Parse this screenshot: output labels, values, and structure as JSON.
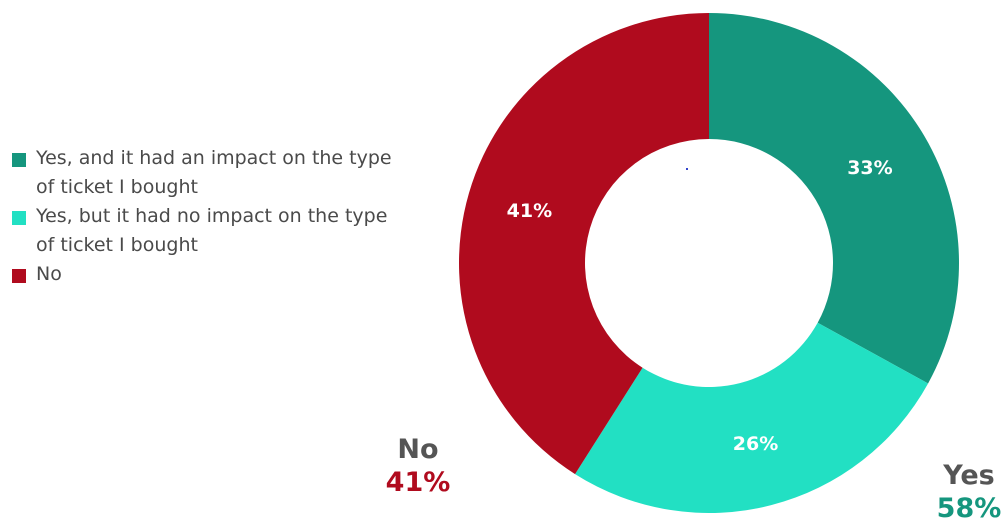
{
  "chart_data": {
    "type": "pie",
    "donut": true,
    "slices": [
      {
        "label": "Yes, and it had an impact on the type of ticket I bought",
        "value": 33,
        "display": "33%",
        "color": "#15967e"
      },
      {
        "label": "Yes, but it had no impact on the type of ticket I bought",
        "value": 26,
        "display": "26%",
        "color": "#22e0c3"
      },
      {
        "label": "No",
        "value": 41,
        "display": "41%",
        "color": "#b00b1e"
      }
    ],
    "legend_position": "left",
    "callouts": [
      {
        "title": "No",
        "value": "41%",
        "color": "#b00b1e"
      },
      {
        "title": "Yes",
        "value": "58%",
        "color": "#15967e"
      }
    ]
  }
}
